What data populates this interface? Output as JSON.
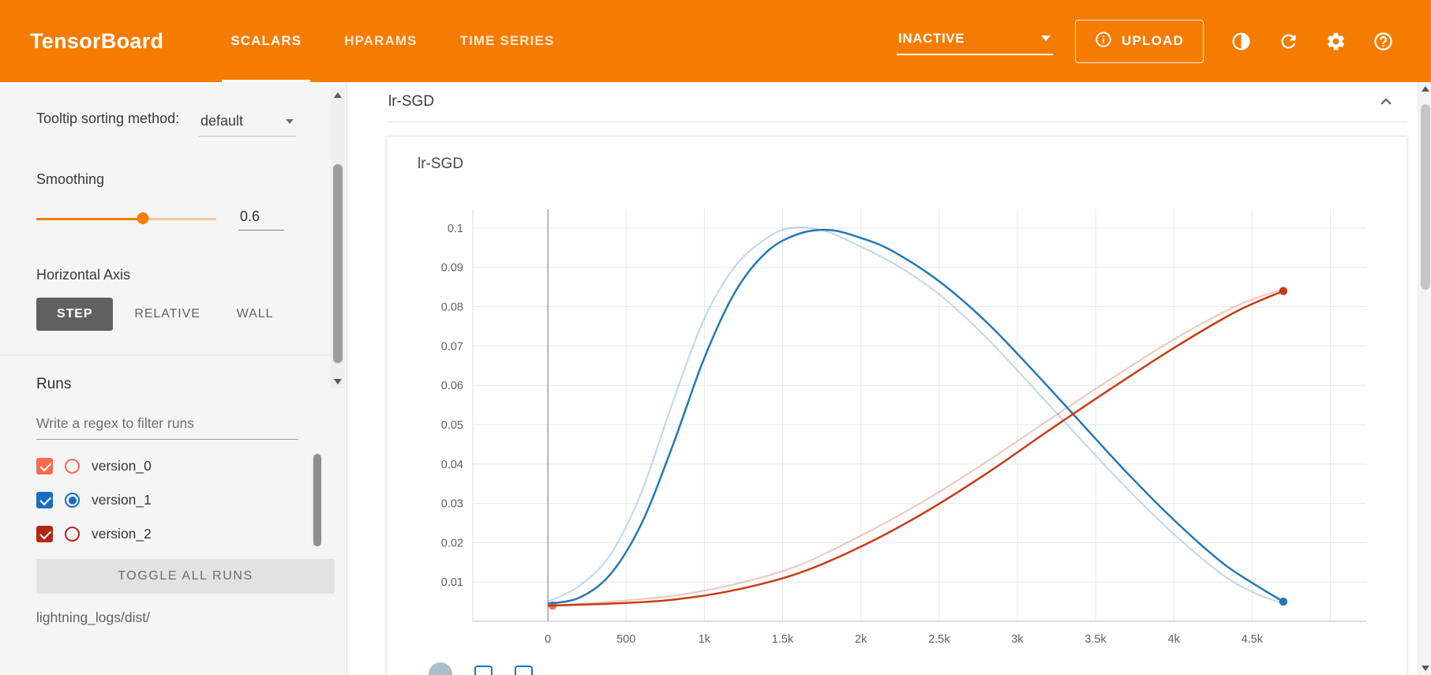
{
  "header": {
    "title": "TensorBoard",
    "tabs": [
      {
        "label": "SCALARS",
        "active": true
      },
      {
        "label": "HPARAMS",
        "active": false
      },
      {
        "label": "TIME SERIES",
        "active": false
      }
    ],
    "status_dropdown": {
      "value": "INACTIVE"
    },
    "upload": {
      "label": "UPLOAD"
    },
    "icon_buttons": [
      "theme-toggle-icon",
      "refresh-icon",
      "settings-icon",
      "help-icon"
    ],
    "accent_color": "#f57c00"
  },
  "sidebar": {
    "tooltip_sorting": {
      "label": "Tooltip sorting method:",
      "value": "default"
    },
    "smoothing": {
      "label": "Smoothing",
      "value": "0.6"
    },
    "horizontal_axis": {
      "label": "Horizontal Axis",
      "options": [
        {
          "label": "STEP",
          "active": true
        },
        {
          "label": "RELATIVE",
          "active": false
        },
        {
          "label": "WALL",
          "active": false
        }
      ]
    },
    "runs": {
      "title": "Runs",
      "filter_placeholder": "Write a regex to filter runs",
      "items": [
        {
          "name": "version_0",
          "color": "#fa6b51",
          "checked": true,
          "radio_selected": false
        },
        {
          "name": "version_1",
          "color": "#1a6dc0",
          "checked": true,
          "radio_selected": true
        },
        {
          "name": "version_2",
          "color": "#b42513",
          "checked": true,
          "radio_selected": false
        }
      ],
      "toggle_all_label": "TOGGLE ALL RUNS",
      "log_dir": "lightning_logs/dist/"
    }
  },
  "main": {
    "group_title": "lr-SGD",
    "card_title": "lr-SGD",
    "card_toolbar_icons": [
      "circle-icon",
      "fullscreen-icon",
      "fit-domain-icon"
    ]
  },
  "chart_data": {
    "type": "line",
    "title": "lr-SGD",
    "grid": true,
    "smoothing": 0.6,
    "x_tick_labels": [
      "0",
      "500",
      "1k",
      "1.5k",
      "2k",
      "2.5k",
      "3k",
      "3.5k",
      "4k",
      "4.5k"
    ],
    "x_tick_values": [
      0,
      500,
      1000,
      1500,
      2000,
      2500,
      3000,
      3500,
      4000,
      4500
    ],
    "x_grid_extra": [
      5000
    ],
    "y_tick_labels": [
      "0.01",
      "0.02",
      "0.03",
      "0.04",
      "0.05",
      "0.06",
      "0.07",
      "0.08",
      "0.09",
      "0.1"
    ],
    "xlim": [
      -480,
      5230
    ],
    "ylim": [
      0,
      0.1048
    ],
    "series": [
      {
        "name": "version_0",
        "color": "#f96e4c",
        "points": [
          [
            30,
            0.004
          ]
        ],
        "end_dot": [
          30,
          0.004
        ]
      },
      {
        "name": "version_1",
        "color": "#2379b4",
        "smoothed": [
          [
            0,
            0.0045
          ],
          [
            200,
            0.006
          ],
          [
            400,
            0.012
          ],
          [
            600,
            0.025
          ],
          [
            800,
            0.045
          ],
          [
            1000,
            0.067
          ],
          [
            1200,
            0.084
          ],
          [
            1400,
            0.094
          ],
          [
            1600,
            0.0985
          ],
          [
            1800,
            0.0995
          ],
          [
            2000,
            0.0975
          ],
          [
            2200,
            0.0942
          ],
          [
            2500,
            0.0865
          ],
          [
            2800,
            0.0762
          ],
          [
            3100,
            0.0638
          ],
          [
            3400,
            0.0508
          ],
          [
            3700,
            0.0378
          ],
          [
            4000,
            0.0258
          ],
          [
            4300,
            0.0152
          ],
          [
            4500,
            0.0098
          ],
          [
            4700,
            0.005
          ]
        ],
        "original": [
          [
            0,
            0.005
          ],
          [
            200,
            0.009
          ],
          [
            400,
            0.017
          ],
          [
            600,
            0.033
          ],
          [
            800,
            0.056
          ],
          [
            1000,
            0.077
          ],
          [
            1200,
            0.0905
          ],
          [
            1400,
            0.0975
          ],
          [
            1550,
            0.1
          ],
          [
            1750,
            0.0995
          ],
          [
            1950,
            0.0962
          ],
          [
            2200,
            0.0912
          ],
          [
            2500,
            0.0832
          ],
          [
            2800,
            0.0722
          ],
          [
            3100,
            0.0595
          ],
          [
            3400,
            0.0465
          ],
          [
            3700,
            0.0338
          ],
          [
            4000,
            0.0222
          ],
          [
            4300,
            0.0122
          ],
          [
            4500,
            0.0075
          ],
          [
            4700,
            0.0045
          ]
        ],
        "end_dot": [
          4700,
          0.005
        ]
      },
      {
        "name": "version_2",
        "color": "#c63c16",
        "smoothed": [
          [
            0,
            0.004
          ],
          [
            400,
            0.0045
          ],
          [
            800,
            0.0055
          ],
          [
            1200,
            0.008
          ],
          [
            1600,
            0.0122
          ],
          [
            2000,
            0.019
          ],
          [
            2400,
            0.0275
          ],
          [
            2800,
            0.0375
          ],
          [
            3200,
            0.0485
          ],
          [
            3600,
            0.0592
          ],
          [
            4000,
            0.0695
          ],
          [
            4400,
            0.0788
          ],
          [
            4700,
            0.084
          ]
        ],
        "original": [
          [
            0,
            0.004
          ],
          [
            400,
            0.005
          ],
          [
            800,
            0.0065
          ],
          [
            1200,
            0.0095
          ],
          [
            1600,
            0.0142
          ],
          [
            2000,
            0.0218
          ],
          [
            2400,
            0.0305
          ],
          [
            2800,
            0.0405
          ],
          [
            3200,
            0.0512
          ],
          [
            3600,
            0.0617
          ],
          [
            4000,
            0.0717
          ],
          [
            4400,
            0.0802
          ],
          [
            4700,
            0.0845
          ]
        ],
        "end_dot": [
          4700,
          0.084
        ]
      }
    ]
  }
}
